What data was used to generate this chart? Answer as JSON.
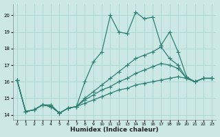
{
  "xlabel": "Humidex (Indice chaleur)",
  "background_color": "#cce8e4",
  "grid_color": "#aad4cf",
  "line_color": "#2a7f72",
  "xlim": [
    -0.5,
    23.5
  ],
  "ylim": [
    13.7,
    20.7
  ],
  "yticks": [
    14,
    15,
    16,
    17,
    18,
    19,
    20
  ],
  "xticks": [
    0,
    1,
    2,
    3,
    4,
    5,
    6,
    7,
    8,
    9,
    10,
    11,
    12,
    13,
    14,
    15,
    16,
    17,
    18,
    19,
    20,
    21,
    22,
    23
  ],
  "series": [
    {
      "x": [
        0,
        1,
        2,
        3,
        4,
        5,
        6,
        7,
        8,
        9,
        10,
        11,
        12,
        13,
        14,
        15,
        16,
        17,
        18,
        19,
        20,
        21,
        22,
        23
      ],
      "y": [
        16.1,
        14.2,
        14.3,
        14.6,
        14.6,
        14.1,
        14.4,
        14.5,
        16.0,
        17.2,
        17.8,
        20.0,
        19.0,
        18.9,
        20.2,
        19.8,
        19.9,
        18.2,
        19.0,
        17.8,
        16.3,
        16.0,
        16.2,
        16.2
      ]
    },
    {
      "x": [
        0,
        1,
        2,
        3,
        4,
        5,
        6,
        7,
        8,
        9,
        10,
        11,
        12,
        13,
        14,
        15,
        16,
        17,
        18,
        19,
        20,
        21,
        22,
        23
      ],
      "y": [
        16.1,
        14.2,
        14.3,
        14.6,
        14.5,
        14.1,
        14.4,
        14.5,
        15.0,
        15.4,
        15.8,
        16.2,
        16.6,
        17.0,
        17.4,
        17.6,
        17.8,
        18.1,
        17.4,
        17.0,
        16.2,
        16.0,
        16.2,
        16.2
      ]
    },
    {
      "x": [
        0,
        1,
        2,
        3,
        4,
        5,
        6,
        7,
        8,
        9,
        10,
        11,
        12,
        13,
        14,
        15,
        16,
        17,
        18,
        19,
        20,
        21,
        22,
        23
      ],
      "y": [
        16.1,
        14.2,
        14.3,
        14.6,
        14.5,
        14.1,
        14.4,
        14.5,
        14.9,
        15.2,
        15.5,
        15.7,
        16.0,
        16.2,
        16.5,
        16.7,
        16.9,
        17.1,
        17.0,
        16.8,
        16.2,
        16.0,
        16.2,
        16.2
      ]
    },
    {
      "x": [
        0,
        1,
        2,
        3,
        4,
        5,
        6,
        7,
        8,
        9,
        10,
        11,
        12,
        13,
        14,
        15,
        16,
        17,
        18,
        19,
        20,
        21,
        22,
        23
      ],
      "y": [
        16.1,
        14.2,
        14.3,
        14.6,
        14.5,
        14.1,
        14.4,
        14.5,
        14.7,
        14.9,
        15.1,
        15.3,
        15.5,
        15.6,
        15.8,
        15.9,
        16.0,
        16.1,
        16.2,
        16.3,
        16.2,
        16.0,
        16.2,
        16.2
      ]
    }
  ]
}
